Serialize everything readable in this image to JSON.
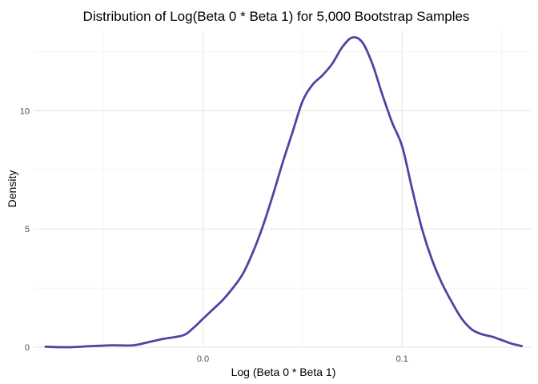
{
  "chart_data": {
    "type": "area",
    "title": "Distribution of Log(Beta 0 * Beta 1) for 5,000 Bootstrap Samples",
    "xlabel": "Log (Beta 0 * Beta 1)",
    "ylabel": "Density",
    "xlim": [
      -0.085,
      0.165
    ],
    "ylim": [
      0,
      13.4
    ],
    "x_ticks": [
      0.0,
      0.1
    ],
    "x_tick_labels": [
      "0.0",
      "0.1"
    ],
    "x_minor_ticks": [
      -0.05,
      0.05,
      0.15
    ],
    "y_ticks": [
      0,
      5,
      10
    ],
    "y_tick_labels": [
      "0",
      "5",
      "10"
    ],
    "y_minor_ticks": [
      2.5,
      7.5,
      12.5
    ],
    "grid": true,
    "legend": "none",
    "series": [
      {
        "color": "#5a3fa3",
        "x": [
          -0.079,
          -0.068,
          -0.055,
          -0.045,
          -0.035,
          -0.028,
          -0.02,
          -0.01,
          -0.005,
          0.0,
          0.005,
          0.01,
          0.015,
          0.02,
          0.025,
          0.03,
          0.035,
          0.04,
          0.045,
          0.05,
          0.055,
          0.06,
          0.065,
          0.07,
          0.075,
          0.08,
          0.085,
          0.09,
          0.095,
          0.1,
          0.105,
          0.11,
          0.115,
          0.12,
          0.125,
          0.13,
          0.135,
          0.14,
          0.145,
          0.15,
          0.155,
          0.16
        ],
        "y": [
          0.02,
          0.0,
          0.05,
          0.08,
          0.08,
          0.2,
          0.35,
          0.5,
          0.8,
          1.2,
          1.6,
          2.0,
          2.5,
          3.1,
          4.0,
          5.1,
          6.4,
          7.8,
          9.1,
          10.4,
          11.1,
          11.5,
          12.0,
          12.7,
          13.1,
          12.9,
          12.0,
          10.7,
          9.5,
          8.5,
          6.7,
          5.0,
          3.7,
          2.7,
          1.9,
          1.2,
          0.75,
          0.55,
          0.45,
          0.3,
          0.15,
          0.05
        ]
      }
    ]
  }
}
